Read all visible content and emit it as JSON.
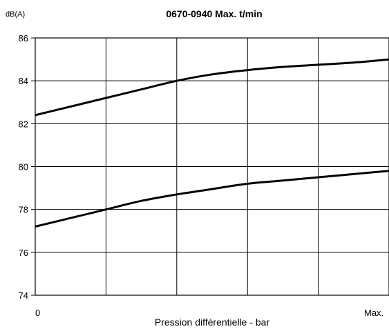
{
  "chart_data": {
    "type": "line",
    "title": "0670-0940 Max. t/min",
    "ylabel": "dB(A)",
    "xlabel": "Pression différentielle - bar",
    "x_tick_labels": [
      "0",
      "Max."
    ],
    "x": [
      0,
      0.1,
      0.2,
      0.3,
      0.4,
      0.5,
      0.6,
      0.7,
      0.8,
      0.9,
      1.0
    ],
    "xlim": [
      0,
      1
    ],
    "ylim": [
      74,
      86
    ],
    "yticks": [
      "74",
      "76",
      "78",
      "80",
      "82",
      "84",
      "86"
    ],
    "grid": true,
    "series": [
      {
        "values": [
          82.4,
          82.8,
          83.2,
          83.6,
          84.0,
          84.3,
          84.5,
          84.65,
          84.75,
          84.85,
          85.0
        ]
      },
      {
        "values": [
          77.2,
          77.6,
          78.0,
          78.4,
          78.7,
          78.95,
          79.2,
          79.35,
          79.5,
          79.65,
          79.8
        ]
      }
    ]
  }
}
